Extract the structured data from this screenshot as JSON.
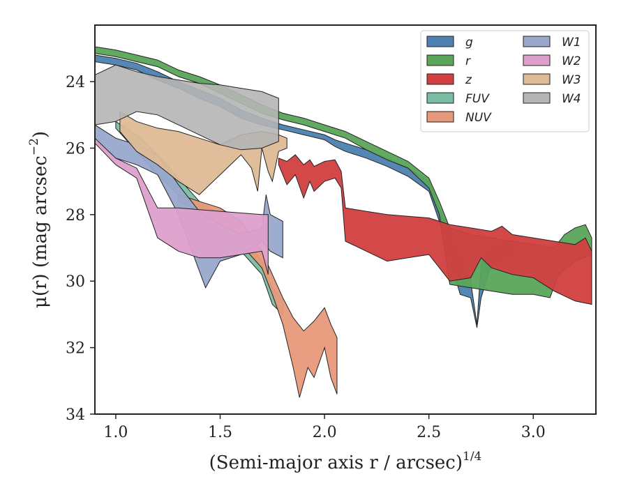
{
  "chart_data": {
    "type": "area",
    "xlabel": "(Semi-major axis r / arcsec)",
    "xlabel_exponent": "1/4",
    "ylabel": "μ(r) (mag arcsec",
    "ylabel_exponent": "−2",
    "ylabel_close": ")",
    "xlim": [
      0.9,
      3.3
    ],
    "ylim": [
      34,
      22.3
    ],
    "y_inverted": true,
    "xticks": [
      1.0,
      1.5,
      2.0,
      2.5,
      3.0
    ],
    "xtick_labels": [
      "1.0",
      "1.5",
      "2.0",
      "2.5",
      "3.0"
    ],
    "yticks": [
      24,
      26,
      28,
      30,
      32,
      34
    ],
    "ytick_labels": [
      "24",
      "26",
      "28",
      "30",
      "32",
      "34"
    ],
    "grid": false,
    "legend_position": "top-right",
    "legend_columns": 2,
    "series": [
      {
        "name": "g",
        "label_html": "g",
        "color": "#4c81b1",
        "upper": [
          [
            0.9,
            23.2
          ],
          [
            1.0,
            23.3
          ],
          [
            1.1,
            23.45
          ],
          [
            1.2,
            23.7
          ],
          [
            1.3,
            24.0
          ],
          [
            1.4,
            24.25
          ],
          [
            1.5,
            24.5
          ],
          [
            1.6,
            24.85
          ],
          [
            1.7,
            25.1
          ],
          [
            1.8,
            25.3
          ],
          [
            1.9,
            25.45
          ],
          [
            2.0,
            25.6
          ],
          [
            2.05,
            25.75
          ],
          [
            2.1,
            25.85
          ],
          [
            2.2,
            26.05
          ],
          [
            2.3,
            26.3
          ],
          [
            2.4,
            26.6
          ],
          [
            2.5,
            27.0
          ],
          [
            2.55,
            27.8
          ],
          [
            2.6,
            28.5
          ],
          [
            2.65,
            29.2
          ],
          [
            2.7,
            30.0
          ],
          [
            2.73,
            31.3
          ],
          [
            2.75,
            29.5
          ],
          [
            2.8,
            28.9
          ],
          [
            2.9,
            28.8
          ]
        ],
        "lower": [
          [
            0.9,
            23.4
          ],
          [
            1.0,
            23.5
          ],
          [
            1.1,
            23.65
          ],
          [
            1.2,
            23.95
          ],
          [
            1.3,
            24.2
          ],
          [
            1.4,
            24.5
          ],
          [
            1.5,
            24.75
          ],
          [
            1.6,
            25.1
          ],
          [
            1.7,
            25.3
          ],
          [
            1.8,
            25.45
          ],
          [
            1.9,
            25.6
          ],
          [
            2.0,
            25.75
          ],
          [
            2.05,
            25.95
          ],
          [
            2.1,
            26.1
          ],
          [
            2.2,
            26.3
          ],
          [
            2.3,
            26.55
          ],
          [
            2.4,
            26.85
          ],
          [
            2.5,
            27.3
          ],
          [
            2.55,
            28.2
          ],
          [
            2.6,
            29.3
          ],
          [
            2.65,
            30.4
          ],
          [
            2.7,
            30.5
          ],
          [
            2.73,
            31.4
          ],
          [
            2.75,
            30.5
          ],
          [
            2.8,
            29.5
          ],
          [
            2.9,
            29.2
          ]
        ]
      },
      {
        "name": "r",
        "label_html": "r",
        "color": "#5aa55a",
        "upper": [
          [
            0.9,
            22.95
          ],
          [
            1.0,
            23.05
          ],
          [
            1.1,
            23.2
          ],
          [
            1.2,
            23.35
          ],
          [
            1.3,
            23.65
          ],
          [
            1.4,
            23.85
          ],
          [
            1.5,
            24.1
          ],
          [
            1.6,
            24.4
          ],
          [
            1.7,
            24.7
          ],
          [
            1.8,
            24.95
          ],
          [
            1.9,
            25.1
          ],
          [
            2.0,
            25.3
          ],
          [
            2.1,
            25.5
          ],
          [
            2.2,
            25.8
          ],
          [
            2.3,
            26.1
          ],
          [
            2.4,
            26.4
          ],
          [
            2.5,
            26.9
          ],
          [
            2.55,
            27.6
          ],
          [
            2.6,
            28.4
          ],
          [
            2.7,
            28.6
          ],
          [
            2.8,
            28.7
          ],
          [
            2.9,
            28.8
          ],
          [
            3.0,
            28.9
          ],
          [
            3.1,
            29.0
          ],
          [
            3.15,
            28.6
          ],
          [
            3.2,
            28.4
          ],
          [
            3.25,
            28.3
          ],
          [
            3.28,
            28.7
          ]
        ],
        "lower": [
          [
            0.9,
            23.15
          ],
          [
            1.0,
            23.25
          ],
          [
            1.1,
            23.4
          ],
          [
            1.2,
            23.55
          ],
          [
            1.3,
            23.85
          ],
          [
            1.4,
            24.05
          ],
          [
            1.5,
            24.35
          ],
          [
            1.6,
            24.65
          ],
          [
            1.7,
            24.95
          ],
          [
            1.8,
            25.15
          ],
          [
            1.9,
            25.3
          ],
          [
            2.0,
            25.5
          ],
          [
            2.1,
            25.7
          ],
          [
            2.2,
            26.05
          ],
          [
            2.3,
            26.35
          ],
          [
            2.4,
            26.6
          ],
          [
            2.5,
            27.2
          ],
          [
            2.55,
            28.0
          ],
          [
            2.6,
            30.1
          ],
          [
            2.7,
            30.2
          ],
          [
            2.8,
            30.3
          ],
          [
            2.9,
            30.4
          ],
          [
            3.0,
            30.4
          ],
          [
            3.08,
            30.5
          ],
          [
            3.12,
            29.8
          ],
          [
            3.2,
            29.4
          ],
          [
            3.28,
            29.2
          ]
        ]
      },
      {
        "name": "z",
        "label_html": "z",
        "color": "#d13f40",
        "upper": [
          [
            1.78,
            26.3
          ],
          [
            1.82,
            26.4
          ],
          [
            1.86,
            26.2
          ],
          [
            1.9,
            26.5
          ],
          [
            1.93,
            26.35
          ],
          [
            1.95,
            26.55
          ],
          [
            2.0,
            26.4
          ],
          [
            2.05,
            26.35
          ],
          [
            2.08,
            26.7
          ],
          [
            2.1,
            27.8
          ],
          [
            2.2,
            27.9
          ],
          [
            2.3,
            28.0
          ],
          [
            2.4,
            28.05
          ],
          [
            2.5,
            28.1
          ],
          [
            2.6,
            28.3
          ],
          [
            2.7,
            28.4
          ],
          [
            2.8,
            28.5
          ],
          [
            2.85,
            28.35
          ],
          [
            2.9,
            28.6
          ],
          [
            3.0,
            28.7
          ],
          [
            3.1,
            28.8
          ],
          [
            3.2,
            28.9
          ],
          [
            3.25,
            28.7
          ],
          [
            3.28,
            29.1
          ]
        ],
        "lower": [
          [
            1.78,
            26.5
          ],
          [
            1.82,
            27.1
          ],
          [
            1.86,
            26.8
          ],
          [
            1.9,
            27.5
          ],
          [
            1.93,
            27.0
          ],
          [
            1.95,
            27.3
          ],
          [
            2.0,
            27.0
          ],
          [
            2.05,
            26.9
          ],
          [
            2.08,
            27.2
          ],
          [
            2.1,
            28.8
          ],
          [
            2.2,
            29.1
          ],
          [
            2.3,
            29.4
          ],
          [
            2.4,
            29.3
          ],
          [
            2.5,
            29.2
          ],
          [
            2.6,
            30.0
          ],
          [
            2.7,
            29.9
          ],
          [
            2.75,
            29.3
          ],
          [
            2.8,
            29.6
          ],
          [
            2.9,
            29.8
          ],
          [
            3.0,
            29.9
          ],
          [
            3.1,
            30.3
          ],
          [
            3.2,
            30.6
          ],
          [
            3.28,
            30.7
          ]
        ]
      },
      {
        "name": "FUV",
        "label_html": "FUV",
        "color": "#7bbda3",
        "upper": [
          [
            1.0,
            25.2
          ],
          [
            1.1,
            25.6
          ],
          [
            1.2,
            26.2
          ],
          [
            1.3,
            26.9
          ],
          [
            1.4,
            27.6
          ],
          [
            1.5,
            28.0
          ],
          [
            1.6,
            28.6
          ],
          [
            1.7,
            29.4
          ],
          [
            1.75,
            30.2
          ],
          [
            1.8,
            30.6
          ]
        ],
        "lower": [
          [
            1.0,
            25.4
          ],
          [
            1.1,
            26.1
          ],
          [
            1.2,
            26.8
          ],
          [
            1.3,
            27.4
          ],
          [
            1.4,
            27.9
          ],
          [
            1.5,
            28.5
          ],
          [
            1.6,
            29.1
          ],
          [
            1.7,
            29.8
          ],
          [
            1.75,
            30.7
          ],
          [
            1.8,
            31.0
          ]
        ]
      },
      {
        "name": "NUV",
        "label_html": "NUV",
        "color": "#e8997b",
        "upper": [
          [
            1.3,
            27.4
          ],
          [
            1.4,
            27.6
          ],
          [
            1.5,
            27.8
          ],
          [
            1.6,
            28.2
          ],
          [
            1.7,
            29.1
          ],
          [
            1.75,
            29.8
          ],
          [
            1.8,
            30.5
          ],
          [
            1.85,
            31.1
          ],
          [
            1.9,
            31.5
          ],
          [
            1.95,
            31.2
          ],
          [
            2.0,
            30.8
          ],
          [
            2.03,
            31.3
          ],
          [
            2.06,
            31.7
          ]
        ],
        "lower": [
          [
            1.3,
            27.6
          ],
          [
            1.4,
            27.9
          ],
          [
            1.5,
            28.3
          ],
          [
            1.6,
            28.9
          ],
          [
            1.7,
            29.6
          ],
          [
            1.75,
            30.4
          ],
          [
            1.8,
            31.3
          ],
          [
            1.85,
            32.6
          ],
          [
            1.88,
            33.5
          ],
          [
            1.92,
            32.6
          ],
          [
            1.95,
            32.9
          ],
          [
            2.0,
            32.0
          ],
          [
            2.03,
            32.9
          ],
          [
            2.06,
            33.4
          ]
        ]
      },
      {
        "name": "W1",
        "label_html": "W1",
        "color": "#99a8cc",
        "upper": [
          [
            0.9,
            25.3
          ],
          [
            1.0,
            25.7
          ],
          [
            1.1,
            25.9
          ],
          [
            1.2,
            26.2
          ],
          [
            1.3,
            27.1
          ],
          [
            1.4,
            27.9
          ],
          [
            1.5,
            28.3
          ],
          [
            1.6,
            28.6
          ],
          [
            1.7,
            28.4
          ],
          [
            1.72,
            27.4
          ],
          [
            1.74,
            28.0
          ],
          [
            1.8,
            28.2
          ]
        ],
        "lower": [
          [
            0.9,
            25.8
          ],
          [
            1.0,
            26.3
          ],
          [
            1.1,
            26.5
          ],
          [
            1.2,
            26.8
          ],
          [
            1.3,
            28.0
          ],
          [
            1.43,
            30.2
          ],
          [
            1.5,
            29.4
          ],
          [
            1.6,
            29.2
          ],
          [
            1.7,
            28.8
          ],
          [
            1.74,
            29.1
          ],
          [
            1.8,
            29.3
          ]
        ]
      },
      {
        "name": "W2",
        "label_html": "W2",
        "color": "#dda0cc",
        "upper": [
          [
            0.9,
            25.7
          ],
          [
            1.0,
            26.3
          ],
          [
            1.1,
            26.6
          ],
          [
            1.2,
            27.8
          ],
          [
            1.3,
            27.8
          ],
          [
            1.4,
            27.85
          ],
          [
            1.5,
            27.9
          ],
          [
            1.6,
            27.95
          ],
          [
            1.7,
            28.0
          ],
          [
            1.73,
            28.0
          ]
        ],
        "lower": [
          [
            0.9,
            25.85
          ],
          [
            1.0,
            26.5
          ],
          [
            1.1,
            26.9
          ],
          [
            1.2,
            28.7
          ],
          [
            1.3,
            29.1
          ],
          [
            1.4,
            29.3
          ],
          [
            1.5,
            29.3
          ],
          [
            1.6,
            29.2
          ],
          [
            1.7,
            29.1
          ],
          [
            1.73,
            29.8
          ]
        ]
      },
      {
        "name": "W3",
        "label_html": "W3",
        "color": "#deba96",
        "upper": [
          [
            1.02,
            24.9
          ],
          [
            1.1,
            25.2
          ],
          [
            1.2,
            25.4
          ],
          [
            1.3,
            25.5
          ],
          [
            1.4,
            25.7
          ],
          [
            1.5,
            25.9
          ],
          [
            1.6,
            25.6
          ],
          [
            1.7,
            25.5
          ],
          [
            1.78,
            25.6
          ],
          [
            1.82,
            25.7
          ]
        ],
        "lower": [
          [
            1.02,
            25.5
          ],
          [
            1.1,
            26.1
          ],
          [
            1.2,
            26.5
          ],
          [
            1.3,
            27.0
          ],
          [
            1.4,
            27.4
          ],
          [
            1.5,
            26.8
          ],
          [
            1.6,
            26.2
          ],
          [
            1.65,
            26.6
          ],
          [
            1.68,
            27.3
          ],
          [
            1.7,
            26.0
          ],
          [
            1.73,
            26.7
          ],
          [
            1.75,
            27.0
          ],
          [
            1.78,
            26.1
          ],
          [
            1.82,
            26.0
          ]
        ]
      },
      {
        "name": "W4",
        "label_html": "W4",
        "color": "#b5b5b5",
        "upper": [
          [
            0.9,
            23.8
          ],
          [
            1.0,
            23.5
          ],
          [
            1.1,
            23.7
          ],
          [
            1.2,
            23.85
          ],
          [
            1.3,
            23.95
          ],
          [
            1.4,
            24.05
          ],
          [
            1.5,
            24.1
          ],
          [
            1.6,
            24.2
          ],
          [
            1.7,
            24.3
          ],
          [
            1.78,
            24.5
          ]
        ],
        "lower": [
          [
            0.9,
            25.3
          ],
          [
            1.0,
            25.2
          ],
          [
            1.1,
            24.9
          ],
          [
            1.2,
            25.0
          ],
          [
            1.3,
            25.3
          ],
          [
            1.4,
            25.6
          ],
          [
            1.5,
            25.9
          ],
          [
            1.6,
            26.05
          ],
          [
            1.7,
            26.0
          ],
          [
            1.78,
            25.8
          ]
        ]
      }
    ]
  }
}
